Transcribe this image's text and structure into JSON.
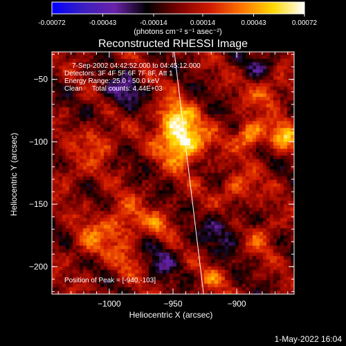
{
  "colorbar": {
    "ticks": [
      -0.00072,
      -0.00043,
      -0.00014,
      0.00014,
      0.00043,
      0.00072
    ],
    "tick_labels": [
      "-0.00072",
      "-0.00043",
      "-0.00014",
      "0.00014",
      "0.00043",
      "0.00072"
    ],
    "unit_label": "(photons cm⁻² s⁻¹ asec⁻²)",
    "colormap": [
      "#0000ff",
      "#3b1fc0",
      "#6a22a8",
      "#000000",
      "#7a0000",
      "#d01a00",
      "#ff7300",
      "#ffd800",
      "#ffffff"
    ]
  },
  "chart_data": {
    "type": "heatmap",
    "title": "Reconstructed RHESSI Image",
    "xlabel": "Heliocentric X (arcsec)",
    "ylabel": "Heliocentric Y (arcsec)",
    "xlim": [
      -1045,
      -855
    ],
    "ylim": [
      -222,
      -28
    ],
    "x_ticks": [
      -1000,
      -950,
      -900
    ],
    "y_ticks": [
      -50,
      -100,
      -150,
      -200
    ],
    "x_tick_labels": [
      "−1000",
      "−950",
      "−900"
    ],
    "y_tick_labels": [
      "−50",
      "−100",
      "−150",
      "−200"
    ],
    "peak": [
      -940,
      -103
    ],
    "limb_line": {
      "top": [
        -949,
        -28
      ],
      "bottom": [
        -926,
        -222
      ]
    },
    "hot_spots": [
      {
        "x": -942,
        "y": -100,
        "sigma": 12,
        "amp": 0.00072
      },
      {
        "x": -950,
        "y": -80,
        "sigma": 10,
        "amp": 0.00045
      },
      {
        "x": -890,
        "y": -95,
        "sigma": 8,
        "amp": 0.0005
      },
      {
        "x": -862,
        "y": -95,
        "sigma": 8,
        "amp": 0.00045
      },
      {
        "x": -875,
        "y": -60,
        "sigma": 10,
        "amp": 0.0003
      },
      {
        "x": -1008,
        "y": -100,
        "sigma": 9,
        "amp": 0.0003
      },
      {
        "x": -990,
        "y": -165,
        "sigma": 12,
        "amp": 0.00032
      },
      {
        "x": -1015,
        "y": -180,
        "sigma": 10,
        "amp": 0.00025
      },
      {
        "x": -900,
        "y": -140,
        "sigma": 10,
        "amp": 0.0003
      },
      {
        "x": -880,
        "y": -175,
        "sigma": 9,
        "amp": 0.00025
      },
      {
        "x": -960,
        "y": -165,
        "sigma": 8,
        "amp": 0.00022
      },
      {
        "x": -985,
        "y": -195,
        "sigma": 9,
        "amp": 0.0002
      },
      {
        "x": -1030,
        "y": -125,
        "sigma": 8,
        "amp": 0.0002
      },
      {
        "x": -920,
        "y": -210,
        "sigma": 8,
        "amp": 0.00022
      },
      {
        "x": -990,
        "y": -60,
        "sigma": 10,
        "amp": -0.0003
      },
      {
        "x": -910,
        "y": -170,
        "sigma": 12,
        "amp": -0.00025
      },
      {
        "x": -960,
        "y": -195,
        "sigma": 10,
        "amp": -0.0002
      },
      {
        "x": -880,
        "y": -40,
        "sigma": 9,
        "amp": -0.0002
      }
    ]
  },
  "info": {
    "lines": [
      "7-Sep-2002 04:42:52.000 to 04:45:12.000",
      "Detectors: 3F 4F 5F 6F 7F 8F, Att 1",
      "Energy Range: 25.0 - 50.0 keV",
      "Clean     Total counts: 4.44E+03"
    ],
    "peak_text": "Position of Peak = [-940,-103]"
  },
  "footer": {
    "date": "1-May-2022 16:04"
  }
}
